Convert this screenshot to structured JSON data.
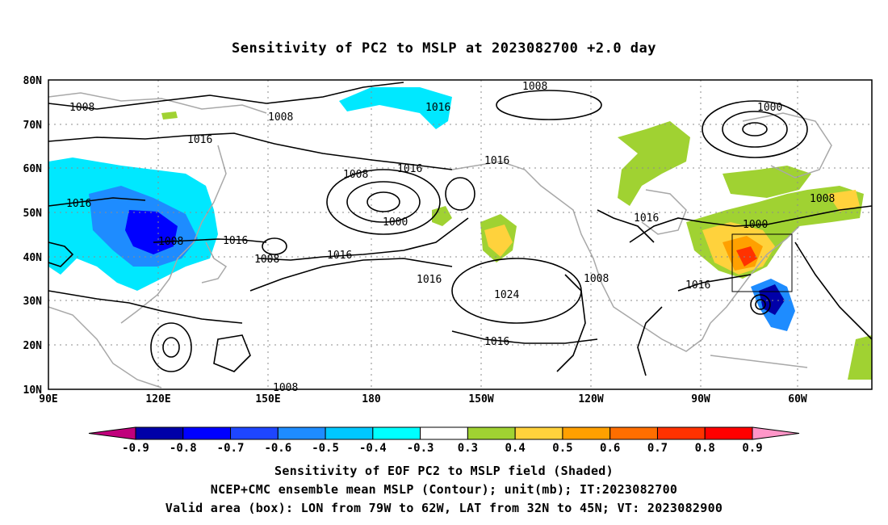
{
  "title": "Sensitivity of PC2 to MSLP at 2023082700 +2.0 day",
  "lat_labels": [
    "80N",
    "70N",
    "60N",
    "50N",
    "40N",
    "30N",
    "20N",
    "10N"
  ],
  "lon_labels": [
    "90E",
    "120E",
    "150E",
    "180",
    "150W",
    "120W",
    "90W",
    "60W"
  ],
  "colorbar": {
    "labels": [
      "-0.9",
      "-0.8",
      "-0.7",
      "-0.6",
      "-0.5",
      "-0.4",
      "-0.3",
      "0.3",
      "0.4",
      "0.5",
      "0.6",
      "0.7",
      "0.8",
      "0.9"
    ],
    "colors": [
      "#c0007c",
      "#0000a8",
      "#0000ff",
      "#1e46ff",
      "#1e8cff",
      "#00c8ff",
      "#00ffff",
      "#ffffff",
      "#a0d232",
      "#ffd23c",
      "#ffa000",
      "#ff6e00",
      "#ff3200",
      "#ff0000",
      "#ff96c8"
    ]
  },
  "contour_labels": [
    "1008",
    "1008",
    "1016",
    "1008",
    "1016",
    "1000",
    "1016",
    "1008",
    "1016",
    "1008",
    "1000",
    "1016",
    "1008",
    "1016",
    "1016",
    "1008",
    "1000",
    "1008",
    "1016",
    "1024",
    "1016",
    "1016",
    "1016",
    "1008",
    "1008",
    "1016",
    "1008"
  ],
  "captions": [
    "Sensitivity of EOF PC2 to MSLP field (Shaded)",
    "NCEP+CMC ensemble mean MSLP (Contour); unit(mb); IT:2023082700",
    "Valid area (box): LON from 79W to 62W, LAT from 32N to 45N; VT: 2023082900"
  ]
}
